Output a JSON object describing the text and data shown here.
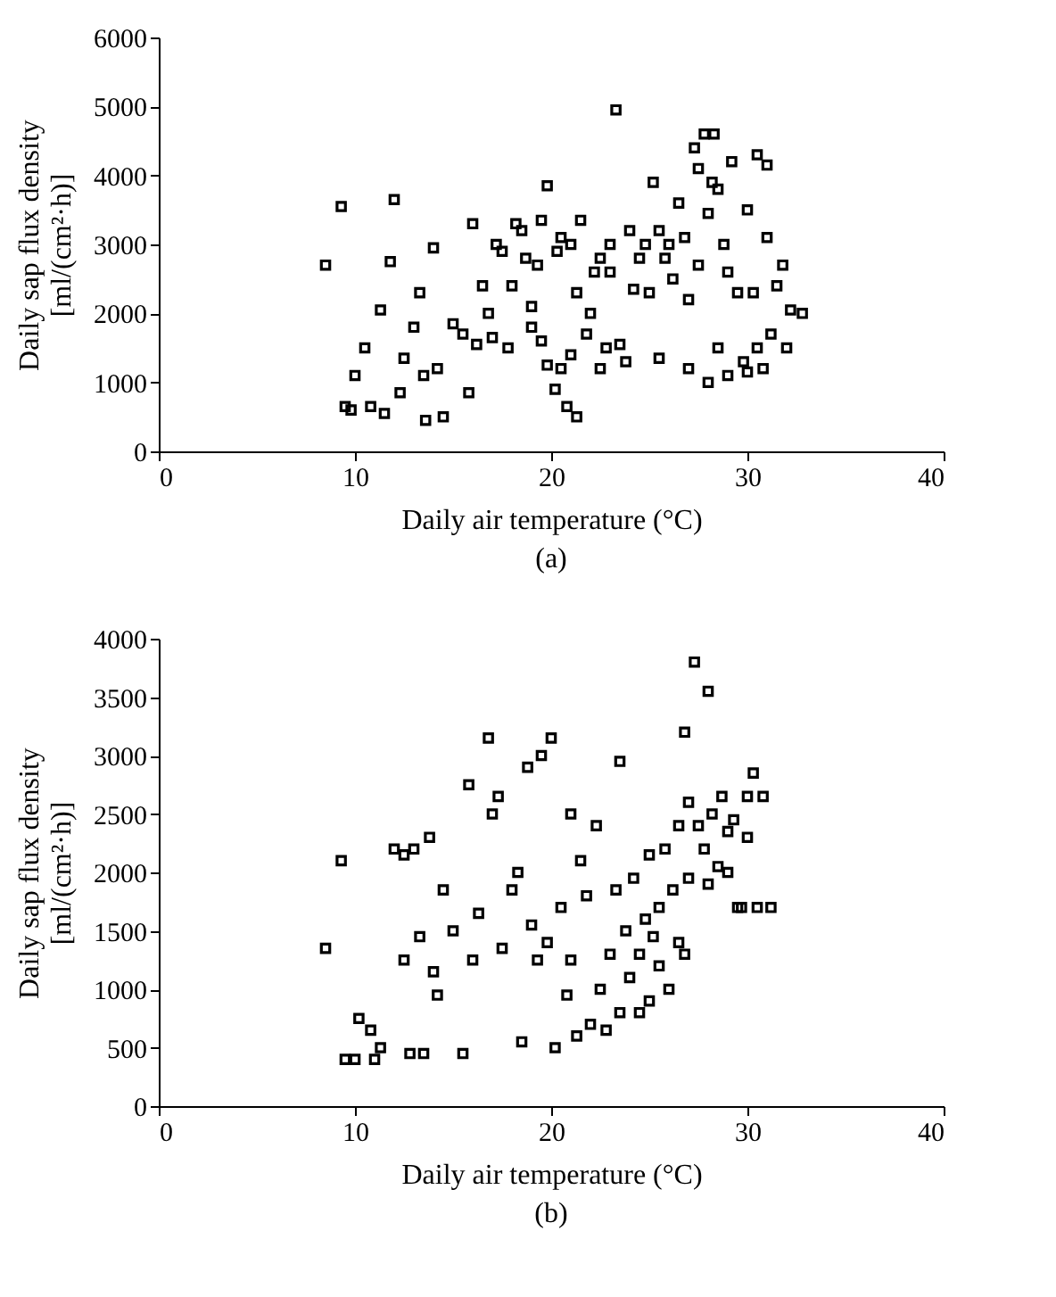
{
  "chart_data": [
    {
      "type": "scatter",
      "title": "(a)",
      "xlabel": "Daily air temperature (°C)",
      "ylabel": "Daily sap flux density\n[ml/(cm²·h)]",
      "xlim": [
        0,
        40
      ],
      "xticks": [
        0,
        10,
        20,
        30,
        40
      ],
      "ylim": [
        0,
        6000
      ],
      "yticks": [
        0,
        1000,
        2000,
        3000,
        4000,
        5000,
        6000
      ],
      "grid": false,
      "marker": "square",
      "series": [
        {
          "color": "#000000",
          "x": [
            8.5,
            9.3,
            9.5,
            9.8,
            10,
            10.5,
            10.8,
            11.3,
            11.5,
            11.8,
            12,
            12.3,
            12.5,
            13,
            13.3,
            13.5,
            13.6,
            14,
            14.2,
            14.5,
            15,
            15.5,
            15.8,
            16,
            16.2,
            16.5,
            16.8,
            17,
            17.2,
            17.5,
            17.8,
            18,
            18.2,
            18.5,
            18.7,
            19,
            19,
            19.3,
            19.5,
            19.5,
            19.8,
            19.8,
            20.2,
            20.3,
            20.5,
            20.5,
            20.8,
            21,
            21,
            21.3,
            21.3,
            21.5,
            21.8,
            22,
            22.2,
            22.5,
            22.5,
            22.8,
            23,
            23,
            23.3,
            23.5,
            23.8,
            24,
            24.2,
            24.5,
            24.8,
            25,
            25.2,
            25.5,
            25.5,
            25.8,
            26,
            26.2,
            26.5,
            26.8,
            27,
            27,
            27.3,
            27.5,
            27.5,
            27.8,
            28,
            28,
            28.2,
            28.3,
            28.5,
            28.5,
            28.8,
            29,
            29,
            29.2,
            29.5,
            29.8,
            30,
            30,
            30.3,
            30.5,
            30.5,
            30.8,
            31,
            31,
            31.2,
            31.5,
            31.8,
            32,
            32.2,
            32.8
          ],
          "values": [
            2700,
            3550,
            650,
            600,
            1100,
            1500,
            650,
            2050,
            550,
            2750,
            3650,
            850,
            1350,
            1800,
            2300,
            1100,
            450,
            2950,
            1200,
            500,
            1850,
            1700,
            850,
            3300,
            1550,
            2400,
            2000,
            1650,
            3000,
            2900,
            1500,
            2400,
            3300,
            3200,
            2800,
            2100,
            1800,
            2700,
            1600,
            3350,
            1250,
            3850,
            900,
            2900,
            1200,
            3100,
            650,
            1400,
            3000,
            500,
            2300,
            3350,
            1700,
            2000,
            2600,
            1200,
            2800,
            1500,
            3000,
            2600,
            4950,
            1550,
            1300,
            3200,
            2350,
            2800,
            3000,
            2300,
            3900,
            3200,
            1350,
            2800,
            3000,
            2500,
            3600,
            3100,
            1200,
            2200,
            4400,
            2700,
            4100,
            4600,
            1000,
            3450,
            3900,
            4600,
            1500,
            3800,
            3000,
            2600,
            1100,
            4200,
            2300,
            1300,
            3500,
            1150,
            2300,
            1500,
            4300,
            1200,
            3100,
            4150,
            1700,
            2400,
            2700,
            1500,
            2050,
            2000
          ]
        }
      ]
    },
    {
      "type": "scatter",
      "title": "(b)",
      "xlabel": "Daily air temperature (°C)",
      "ylabel": "Daily sap flux density\n[ml/(cm²·h)]",
      "xlim": [
        0,
        40
      ],
      "xticks": [
        0,
        10,
        20,
        30,
        40
      ],
      "ylim": [
        0,
        4000
      ],
      "yticks": [
        0,
        500,
        1000,
        1500,
        2000,
        2500,
        3000,
        3500,
        4000
      ],
      "grid": false,
      "marker": "square",
      "series": [
        {
          "color": "#000000",
          "x": [
            8.5,
            9.3,
            9.5,
            10,
            10.2,
            10.8,
            11,
            11.3,
            12,
            12.5,
            12.5,
            12.8,
            13,
            13.3,
            13.5,
            13.8,
            14,
            14.2,
            14.5,
            15,
            15.5,
            15.8,
            16,
            16.3,
            16.8,
            17,
            17.3,
            17.5,
            18,
            18.3,
            18.5,
            18.8,
            19,
            19.3,
            19.5,
            19.8,
            20,
            20.2,
            20.5,
            20.8,
            21,
            21,
            21.3,
            21.5,
            21.8,
            22,
            22.3,
            22.5,
            22.8,
            23,
            23.3,
            23.5,
            23.5,
            23.8,
            24,
            24.2,
            24.5,
            24.5,
            24.8,
            25,
            25,
            25.2,
            25.5,
            25.5,
            25.8,
            26,
            26.2,
            26.5,
            26.5,
            26.8,
            26.8,
            27,
            27,
            27.3,
            27.5,
            27.8,
            28,
            28,
            28.2,
            28.5,
            28.7,
            29,
            29,
            29.3,
            29.5,
            29.7,
            30,
            30,
            30.3,
            30.5,
            30.8,
            31.2
          ],
          "values": [
            1350,
            2100,
            400,
            400,
            750,
            650,
            400,
            500,
            2200,
            2150,
            1250,
            450,
            2200,
            1450,
            450,
            2300,
            1150,
            950,
            1850,
            1500,
            450,
            2750,
            1250,
            1650,
            3150,
            2500,
            2650,
            1350,
            1850,
            2000,
            550,
            2900,
            1550,
            1250,
            3000,
            1400,
            3150,
            500,
            1700,
            950,
            1250,
            2500,
            600,
            2100,
            1800,
            700,
            2400,
            1000,
            650,
            1300,
            1850,
            2950,
            800,
            1500,
            1100,
            1950,
            1300,
            800,
            1600,
            900,
            2150,
            1450,
            1700,
            1200,
            2200,
            1000,
            1850,
            2400,
            1400,
            1300,
            3200,
            2600,
            1950,
            3800,
            2400,
            2200,
            3550,
            1900,
            2500,
            2050,
            2650,
            2350,
            2000,
            2450,
            1700,
            1700,
            2300,
            2650,
            2850,
            1700,
            2650,
            1700
          ]
        }
      ]
    }
  ]
}
